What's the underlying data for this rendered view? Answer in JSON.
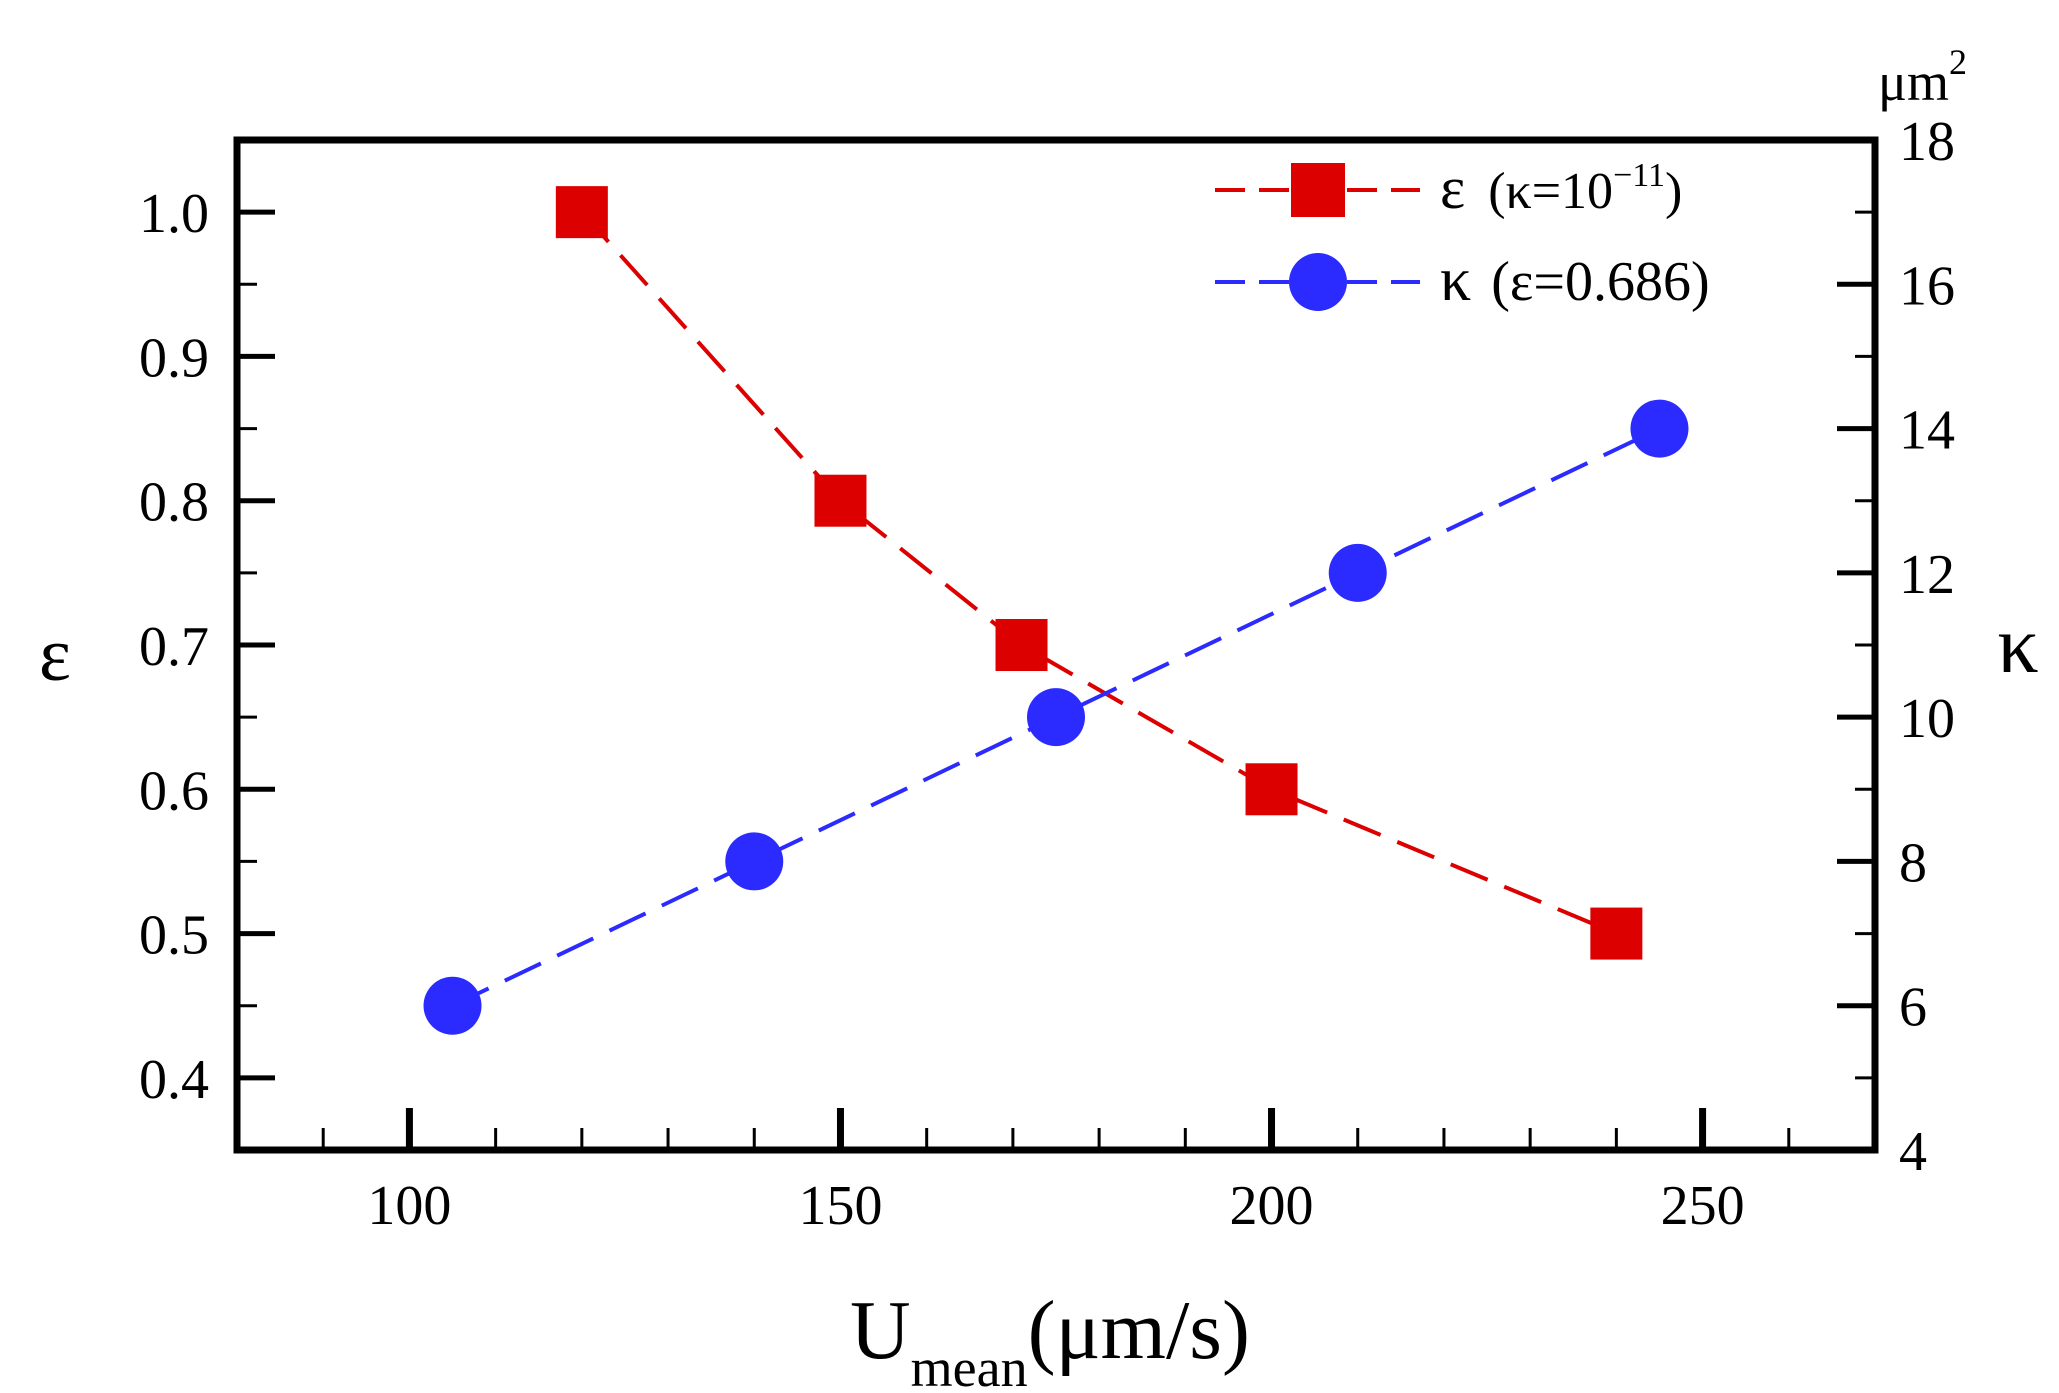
{
  "chart_data": {
    "type": "line",
    "title": "",
    "xlabel": {
      "main": "U",
      "sub": "mean",
      "unit": "(μm/s)"
    },
    "ylabel_left": "ε",
    "ylabel_right": "κ",
    "right_unit": {
      "base": "μm",
      "exp": "2"
    },
    "xlim": [
      80,
      270
    ],
    "ylim_left": [
      0.35,
      1.05
    ],
    "ylim_right": [
      4,
      18
    ],
    "x_ticks": [
      100,
      150,
      200,
      250
    ],
    "x_tick_labels": [
      "100",
      "150",
      "200",
      "250"
    ],
    "y_left_ticks": [
      0.4,
      0.5,
      0.6,
      0.7,
      0.8,
      0.9,
      1.0
    ],
    "y_left_tick_labels": [
      "0.4",
      "0.5",
      "0.6",
      "0.7",
      "0.8",
      "0.9",
      "1.0"
    ],
    "y_right_ticks": [
      4,
      6,
      8,
      10,
      12,
      14,
      16,
      18
    ],
    "y_right_tick_labels": [
      "4",
      "6",
      "8",
      "10",
      "12",
      "14",
      "16",
      "18"
    ],
    "grid": false,
    "legend_position": "top-right",
    "series": [
      {
        "name": "epsilon",
        "legend_symbol": "ε",
        "legend_cond_open": "(κ=10",
        "legend_cond_exp": "−11",
        "legend_cond_close": ")",
        "axis": "left",
        "marker": "square",
        "color": "#dd0000",
        "x": [
          120,
          150,
          171,
          200,
          240
        ],
        "y": [
          1.0,
          0.8,
          0.7,
          0.6,
          0.5
        ]
      },
      {
        "name": "kappa",
        "legend_symbol": "κ",
        "legend_cond": "(ε=0.686)",
        "axis": "right",
        "marker": "circle",
        "color": "#2b2bff",
        "x": [
          105,
          140,
          175,
          210,
          245
        ],
        "y": [
          6,
          8,
          10,
          12,
          14
        ]
      }
    ]
  }
}
